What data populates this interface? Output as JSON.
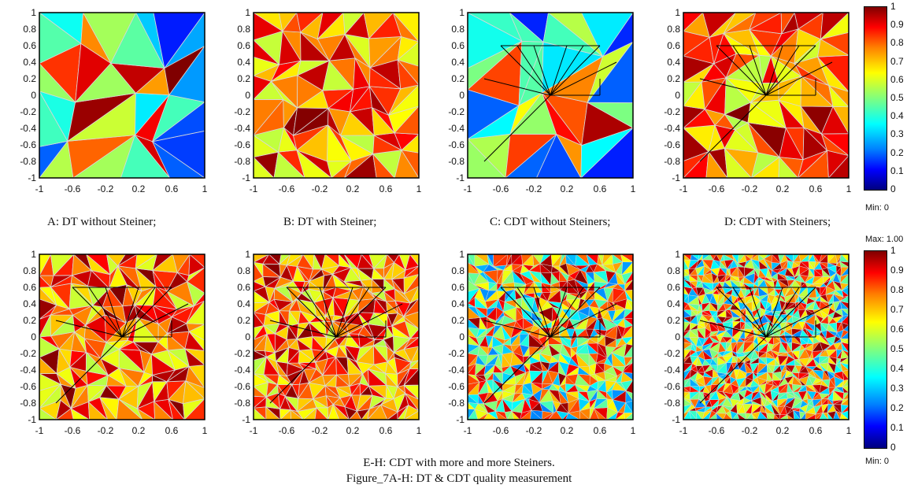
{
  "panels": [
    {
      "caption": "A: DT without Steiner;",
      "density": 0,
      "constrained": false
    },
    {
      "caption": "B: DT with Steiner;",
      "density": 1,
      "constrained": false
    },
    {
      "caption": "C: CDT without Steiners;",
      "density": 0,
      "constrained": true
    },
    {
      "caption": "D: CDT with Steiners;",
      "density": 1,
      "constrained": true
    },
    {
      "caption": "",
      "density": 2,
      "constrained": true
    },
    {
      "caption": "",
      "density": 3,
      "constrained": true
    },
    {
      "caption": "",
      "density": 4,
      "constrained": true
    },
    {
      "caption": "",
      "density": 5,
      "constrained": true
    }
  ],
  "axis": {
    "y_ticks": [
      "1",
      "0.8",
      "0.6",
      "0.4",
      "0.2",
      "0",
      "-0.2",
      "-0.4",
      "-0.6",
      "-0.8",
      "-1"
    ],
    "x_ticks": [
      "-1",
      "-0.6",
      "-0.2",
      "0.2",
      "0.6",
      "1"
    ],
    "x_tick_values": [
      -1,
      -0.6,
      -0.2,
      0.2,
      0.6,
      1
    ],
    "range": [
      -1,
      1
    ]
  },
  "colorbar": {
    "ticks": [
      "1",
      "0.9",
      "0.8",
      "0.7",
      "0.6",
      "0.5",
      "0.4",
      "0.3",
      "0.2",
      "0.1",
      "0"
    ],
    "min_label": "Min: 0",
    "max_label": "Max: 1.00",
    "colormap": "jet",
    "range": [
      0,
      1
    ]
  },
  "bottom_caption": "E-H: CDT with more and more Steiners.",
  "figure_caption": "Figure_7A-H: DT & CDT quality measurement",
  "colors": {
    "jet": [
      "#00007f",
      "#0000ff",
      "#007fff",
      "#00ffff",
      "#7fff7f",
      "#ffff00",
      "#ff7f00",
      "#ff0000",
      "#7f0000"
    ]
  }
}
